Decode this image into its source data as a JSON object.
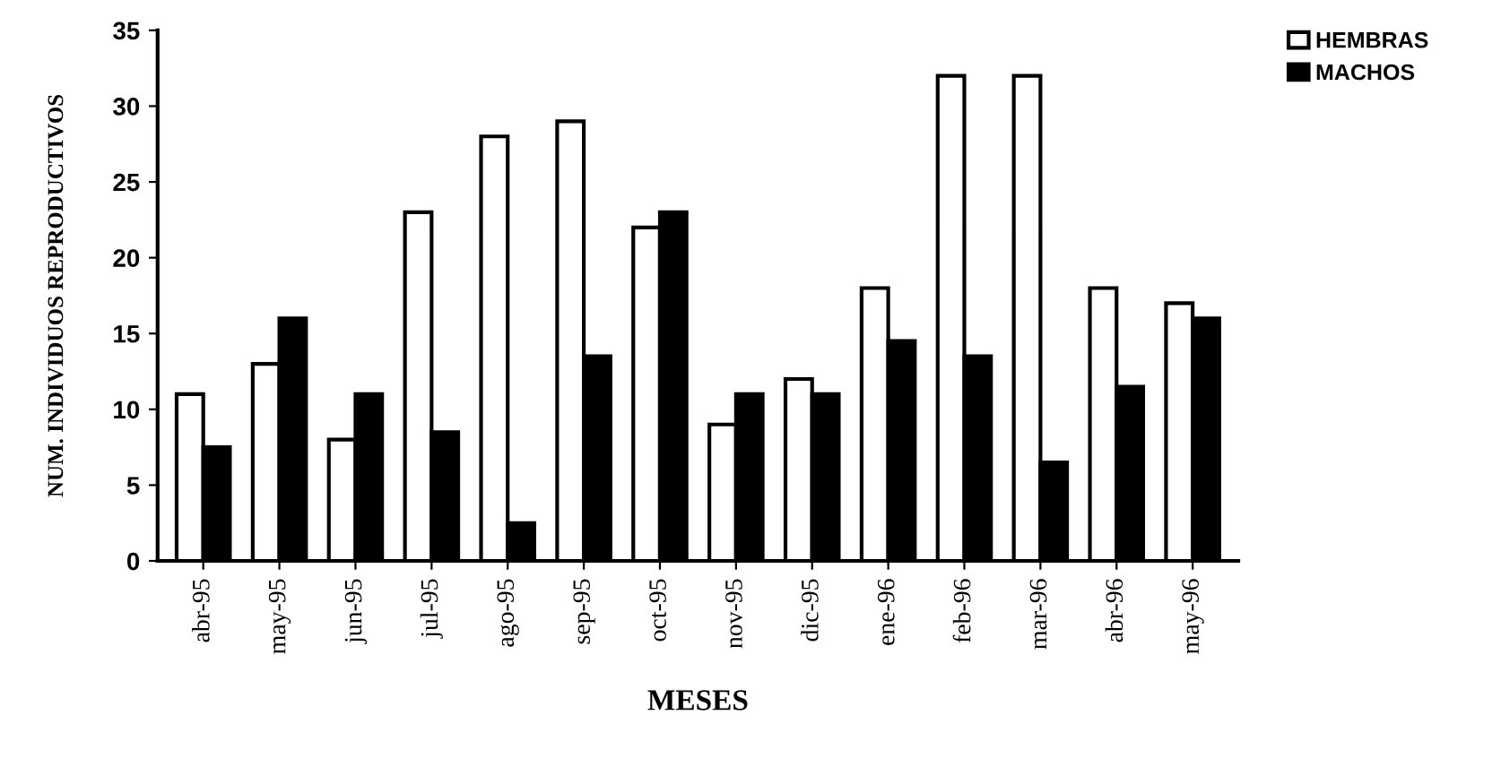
{
  "chart_data": {
    "type": "bar",
    "xlabel": "MESES",
    "ylabel": "NUM. INDIVIDUOS REPRODUCTIVOS",
    "categories": [
      "abr-95",
      "may-95",
      "jun-95",
      "jul-95",
      "ago-95",
      "sep-95",
      "oct-95",
      "nov-95",
      "dic-95",
      "ene-96",
      "feb-96",
      "mar-96",
      "abr-96",
      "may-96"
    ],
    "series": [
      {
        "name": "HEMBRAS",
        "color": "#ffffff",
        "values": [
          11,
          13,
          8,
          23,
          28,
          29,
          22,
          9,
          12,
          18,
          32,
          32,
          18,
          17
        ]
      },
      {
        "name": "MACHOS",
        "color": "#000000",
        "values": [
          7.5,
          16,
          11,
          8.5,
          2.5,
          13.5,
          23,
          11,
          11,
          14.5,
          13.5,
          6.5,
          11.5,
          16
        ]
      }
    ],
    "ylim": [
      0,
      35
    ],
    "yticks": [
      0,
      5,
      10,
      15,
      20,
      25,
      30,
      35
    ],
    "grid": false,
    "legend": "top right"
  }
}
